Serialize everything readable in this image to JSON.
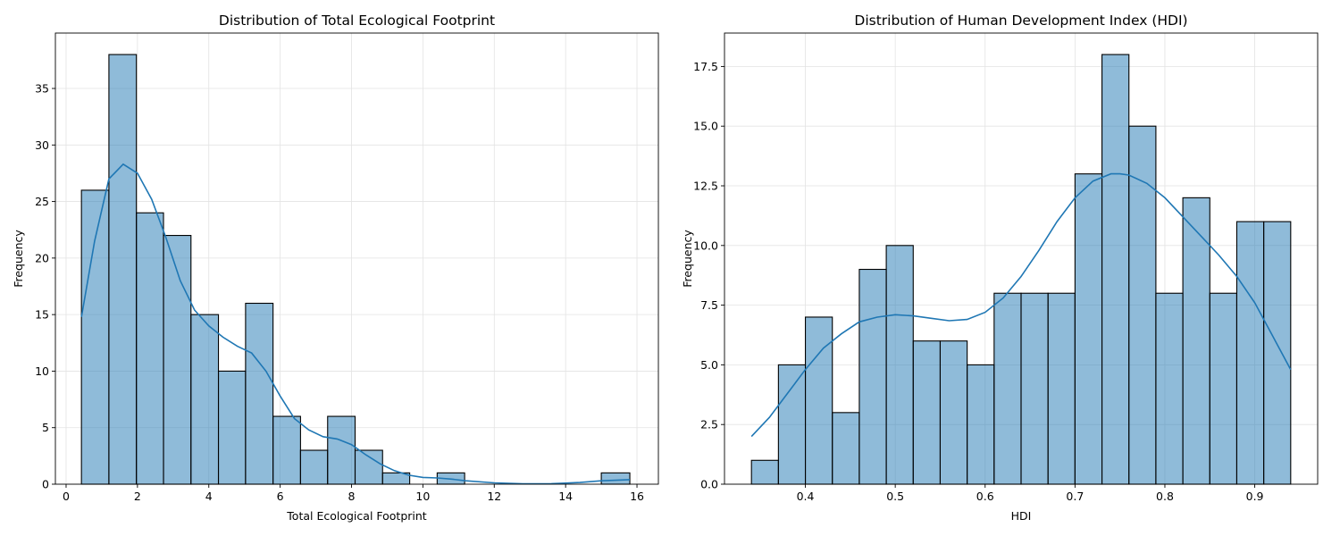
{
  "colors": {
    "bar": "#1f77b4",
    "kde": "#1f77b4"
  },
  "chart_data": [
    {
      "type": "bar",
      "subtype": "histogram-with-kde",
      "title": "Distribution of Total Ecological Footprint",
      "xlabel": "Total Ecological Footprint",
      "ylabel": "Frequency",
      "xlim": [
        -0.3,
        16.6
      ],
      "ylim": [
        0,
        39.9
      ],
      "xticks": [
        0,
        2,
        4,
        6,
        8,
        10,
        12,
        14,
        16
      ],
      "xtick_labels": [
        "0",
        "2",
        "4",
        "6",
        "8",
        "10",
        "12",
        "14",
        "16"
      ],
      "yticks": [
        0,
        5,
        10,
        15,
        20,
        25,
        30,
        35
      ],
      "ytick_labels": [
        "0",
        "5",
        "10",
        "15",
        "20",
        "25",
        "30",
        "35"
      ],
      "grid": true,
      "bin_edges": [
        0.43,
        1.2,
        1.97,
        2.73,
        3.5,
        4.27,
        5.03,
        5.8,
        6.57,
        7.33,
        8.1,
        8.87,
        9.63,
        10.4,
        11.17,
        11.93,
        12.7,
        13.47,
        14.23,
        15.0,
        15.8
      ],
      "counts": [
        26,
        38,
        24,
        22,
        15,
        10,
        16,
        6,
        3,
        6,
        3,
        1,
        0,
        1,
        0,
        0,
        0,
        0,
        0,
        1
      ],
      "kde": {
        "x": [
          0.43,
          0.8,
          1.2,
          1.6,
          2.0,
          2.4,
          2.8,
          3.2,
          3.6,
          4.0,
          4.4,
          4.8,
          5.2,
          5.6,
          6.0,
          6.4,
          6.8,
          7.2,
          7.6,
          8.0,
          8.4,
          8.8,
          9.2,
          9.6,
          10.0,
          10.4,
          10.8,
          11.2,
          12.0,
          12.8,
          13.6,
          14.4,
          15.0,
          15.8
        ],
        "y": [
          14.8,
          21.5,
          27.0,
          28.3,
          27.5,
          25.2,
          21.8,
          18.0,
          15.4,
          14.0,
          13.0,
          12.2,
          11.6,
          10.0,
          7.8,
          5.8,
          4.8,
          4.2,
          4.0,
          3.5,
          2.6,
          1.8,
          1.2,
          0.8,
          0.6,
          0.55,
          0.45,
          0.3,
          0.12,
          0.04,
          0.05,
          0.15,
          0.3,
          0.4
        ]
      }
    },
    {
      "type": "bar",
      "subtype": "histogram-with-kde",
      "title": "Distribution of Human Development Index (HDI)",
      "xlabel": "HDI",
      "ylabel": "Frequency",
      "xlim": [
        0.31,
        0.97
      ],
      "ylim": [
        0,
        18.9
      ],
      "xticks": [
        0.4,
        0.5,
        0.6,
        0.7,
        0.8,
        0.9
      ],
      "xtick_labels": [
        "0.4",
        "0.5",
        "0.6",
        "0.7",
        "0.8",
        "0.9"
      ],
      "yticks": [
        0,
        2.5,
        5,
        7.5,
        10,
        12.5,
        15,
        17.5
      ],
      "ytick_labels": [
        "0.0",
        "2.5",
        "5.0",
        "7.5",
        "10.0",
        "12.5",
        "15.0",
        "17.5"
      ],
      "grid": true,
      "bin_edges": [
        0.34,
        0.37,
        0.4,
        0.43,
        0.46,
        0.49,
        0.52,
        0.55,
        0.58,
        0.61,
        0.64,
        0.67,
        0.7,
        0.73,
        0.76,
        0.79,
        0.82,
        0.85,
        0.88,
        0.91,
        0.94
      ],
      "counts": [
        1,
        5,
        7,
        3,
        9,
        10,
        6,
        6,
        5,
        8,
        8,
        8,
        13,
        18,
        15,
        8,
        12,
        8,
        11,
        11
      ],
      "kde": {
        "x": [
          0.34,
          0.36,
          0.38,
          0.4,
          0.42,
          0.44,
          0.46,
          0.48,
          0.5,
          0.52,
          0.54,
          0.56,
          0.58,
          0.6,
          0.62,
          0.64,
          0.66,
          0.68,
          0.7,
          0.72,
          0.74,
          0.75,
          0.76,
          0.78,
          0.8,
          0.82,
          0.84,
          0.86,
          0.88,
          0.9,
          0.92,
          0.94
        ],
        "y": [
          2.0,
          2.8,
          3.8,
          4.8,
          5.7,
          6.3,
          6.8,
          7.0,
          7.1,
          7.05,
          6.95,
          6.85,
          6.9,
          7.2,
          7.8,
          8.7,
          9.8,
          11.0,
          12.0,
          12.7,
          13.0,
          13.0,
          12.95,
          12.6,
          12.0,
          11.2,
          10.4,
          9.6,
          8.7,
          7.6,
          6.2,
          4.8
        ]
      }
    }
  ]
}
